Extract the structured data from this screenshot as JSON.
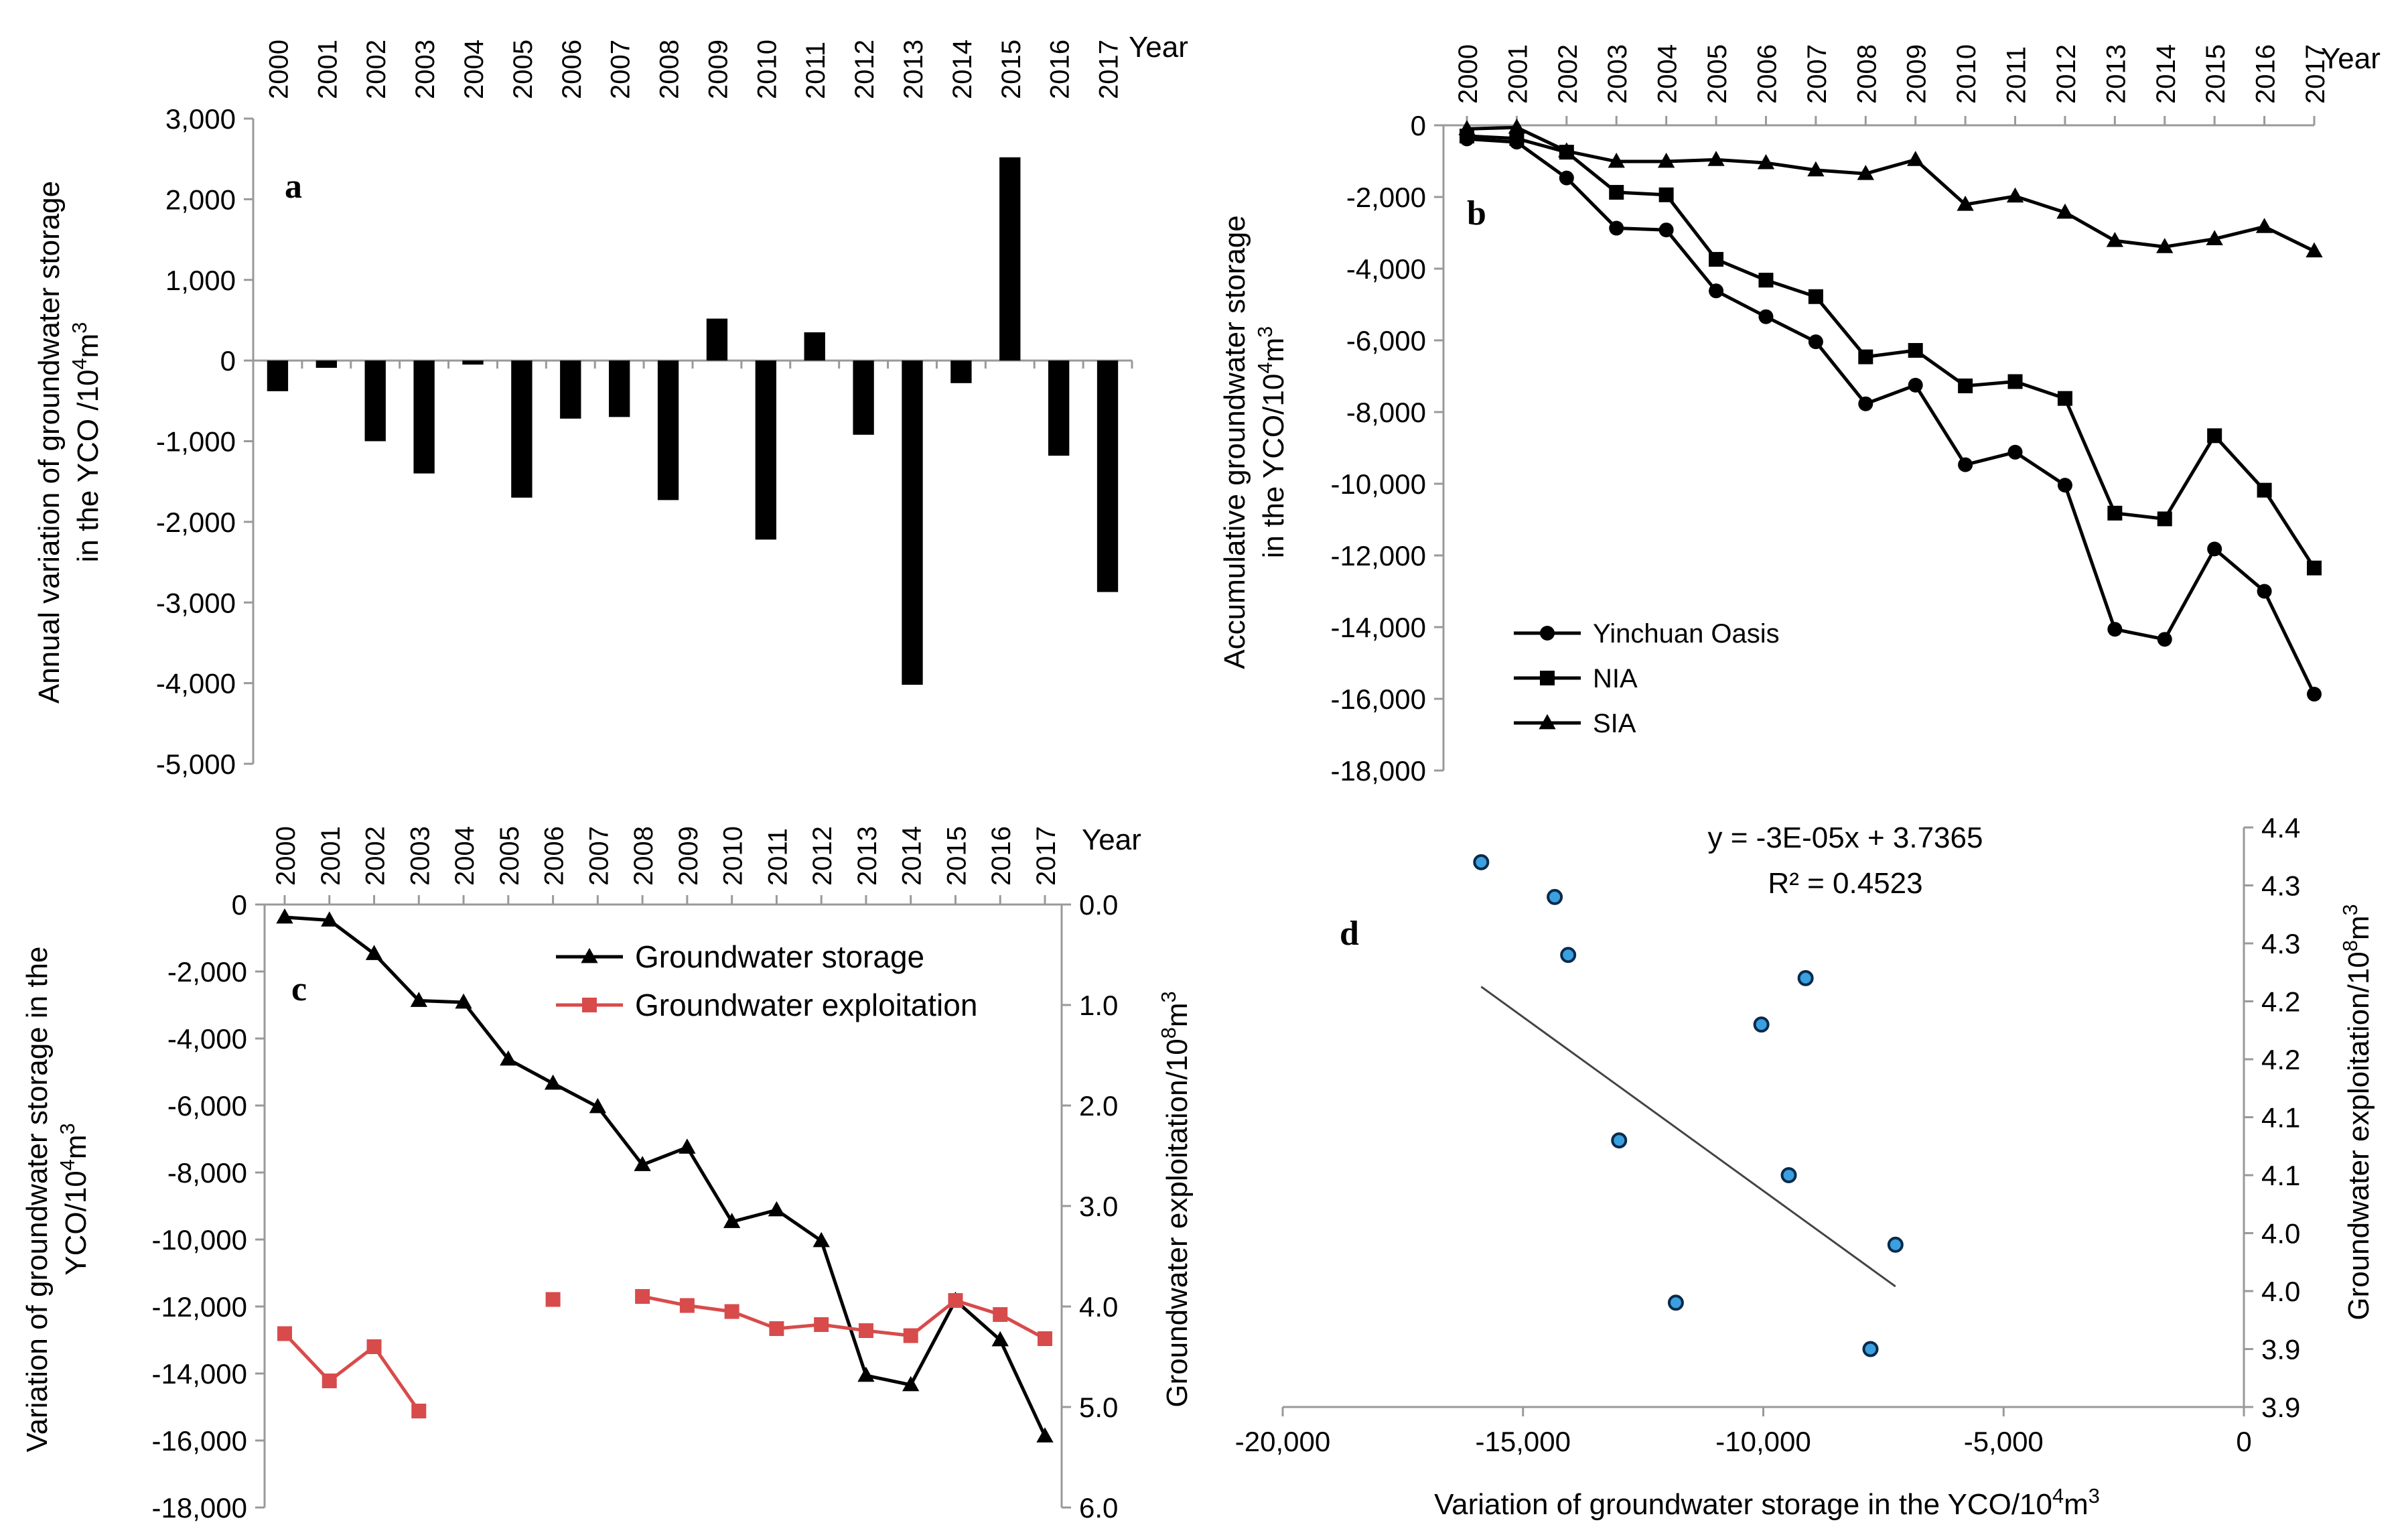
{
  "chart_data": [
    {
      "panel": "a",
      "type": "bar",
      "panel_letter": "a",
      "title": "",
      "xlabel": "Year",
      "ylabel_line1": "Annual variation of groundwater storage",
      "ylabel_line2": "in the YCO /10",
      "ylabel_sup": "4",
      "ylabel_tail": "m",
      "ylabel_sup2": "3",
      "categories": [
        "2000",
        "2001",
        "2002",
        "2003",
        "2004",
        "2005",
        "2006",
        "2007",
        "2008",
        "2009",
        "2010",
        "2011",
        "2012",
        "2013",
        "2014",
        "2015",
        "2016",
        "2017"
      ],
      "values": [
        -380,
        -90,
        -1000,
        -1400,
        -50,
        -1700,
        -720,
        -700,
        -1730,
        520,
        -2220,
        350,
        -920,
        -4020,
        -280,
        2520,
        -1180,
        -2870
      ],
      "ylim": [
        -5000,
        3000
      ],
      "yticks": [
        3000,
        2000,
        1000,
        0,
        -1000,
        -2000,
        -3000,
        -4000,
        -5000
      ],
      "ytick_labels": [
        "3,000",
        "2,000",
        "1,000",
        "0",
        "-1,000",
        "-2,000",
        "-3,000",
        "-4,000",
        "-5,000"
      ],
      "grid": false,
      "x_axis_position": "top"
    },
    {
      "panel": "b",
      "type": "line",
      "panel_letter": "b",
      "xlabel": "Year",
      "ylabel_line1": "Accumulative groundwater storage",
      "ylabel_line2": "in the YCO/10",
      "ylabel_sup": "4",
      "ylabel_tail": "m",
      "ylabel_sup2": "3",
      "categories": [
        "2000",
        "2001",
        "2002",
        "2003",
        "2004",
        "2005",
        "2006",
        "2007",
        "2008",
        "2009",
        "2010",
        "2011",
        "2012",
        "2013",
        "2014",
        "2015",
        "2016",
        "2017"
      ],
      "series": [
        {
          "name": "Yinchuan Oasis",
          "marker": "circle",
          "values": [
            -380,
            -470,
            -1470,
            -2870,
            -2920,
            -4620,
            -5340,
            -6040,
            -7770,
            -7250,
            -9470,
            -9120,
            -10040,
            -14060,
            -14340,
            -11820,
            -13000,
            -15870
          ]
        },
        {
          "name": "NIA",
          "marker": "square",
          "values": [
            -300,
            -370,
            -750,
            -1870,
            -1940,
            -3740,
            -4320,
            -4780,
            -6460,
            -6280,
            -7270,
            -7150,
            -7620,
            -10820,
            -10980,
            -8660,
            -10180,
            -12350
          ]
        },
        {
          "name": "SIA",
          "marker": "triangle",
          "values": [
            -100,
            -60,
            -720,
            -1010,
            -1010,
            -960,
            -1050,
            -1250,
            -1350,
            -960,
            -2210,
            -1980,
            -2430,
            -3220,
            -3390,
            -3170,
            -2830,
            -3510
          ]
        }
      ],
      "ylim": [
        -18000,
        0
      ],
      "yticks": [
        0,
        -2000,
        -4000,
        -6000,
        -8000,
        -10000,
        -12000,
        -14000,
        -16000,
        -18000
      ],
      "ytick_labels": [
        "0",
        "-2,000",
        "-4,000",
        "-6,000",
        "-8,000",
        "-10,000",
        "-12,000",
        "-14,000",
        "-16,000",
        "-18,000"
      ],
      "legend": "lower-left",
      "grid": false,
      "x_axis_position": "top"
    },
    {
      "panel": "c",
      "type": "line",
      "panel_letter": "c",
      "xlabel": "Year",
      "ylabel_line1": "Variation of groundwater storage in the",
      "ylabel_line2": "YCO/10",
      "ylabel_sup": "4",
      "ylabel_tail": "m",
      "ylabel_sup2": "3",
      "y2label": "Groundwater exploitation/10",
      "y2label_sup": "8",
      "y2label_tail": "m",
      "y2label_sup2": "3",
      "categories": [
        "2000",
        "2001",
        "2002",
        "2003",
        "2004",
        "2005",
        "2006",
        "2007",
        "2008",
        "2009",
        "2010",
        "2011",
        "2012",
        "2013",
        "2014",
        "2015",
        "2016",
        "2017"
      ],
      "series": [
        {
          "name": "Groundwater storage",
          "marker": "triangle",
          "color": "#000000",
          "axis": "left",
          "values": [
            -380,
            -470,
            -1470,
            -2870,
            -2920,
            -4620,
            -5340,
            -6040,
            -7770,
            -7250,
            -9470,
            -9120,
            -10040,
            -14060,
            -14340,
            -11820,
            -13000,
            -15870
          ]
        },
        {
          "name": "Groundwater exploitation",
          "marker": "square",
          "color": "#d84b4b",
          "axis": "right",
          "values": [
            4.27,
            4.74,
            4.4,
            5.04,
            null,
            null,
            3.93,
            null,
            3.9,
            3.99,
            4.05,
            4.22,
            4.18,
            4.24,
            4.29,
            3.94,
            4.08,
            4.32
          ]
        }
      ],
      "ylim": [
        -18000,
        0
      ],
      "yticks": [
        0,
        -2000,
        -4000,
        -6000,
        -8000,
        -10000,
        -12000,
        -14000,
        -16000,
        -18000
      ],
      "ytick_labels": [
        "0",
        "-2,000",
        "-4,000",
        "-6,000",
        "-8,000",
        "-10,000",
        "-12,000",
        "-14,000",
        "-16,000",
        "-18,000"
      ],
      "y2lim": [
        0,
        6
      ],
      "y2ticks": [
        0,
        1,
        2,
        3,
        4,
        5,
        6
      ],
      "y2tick_labels": [
        "0.0",
        "1.0",
        "2.0",
        "3.0",
        "4.0",
        "5.0",
        "6.0"
      ],
      "legend": "top-right",
      "grid": false,
      "x_axis_position": "top"
    },
    {
      "panel": "d",
      "type": "scatter",
      "panel_letter": "d",
      "xlabel": "Variation of groundwater storage in the YCO/10",
      "xlabel_sup": "4",
      "xlabel_tail": "m",
      "xlabel_sup2": "3",
      "y2label": "Groundwater exploitation/10",
      "y2label_sup": "8",
      "y2label_tail": "m",
      "y2label_sup2": "3",
      "points": [
        {
          "x": -15870,
          "y": 4.32
        },
        {
          "x": -14340,
          "y": 4.29
        },
        {
          "x": -14060,
          "y": 4.24
        },
        {
          "x": -13000,
          "y": 4.08
        },
        {
          "x": -11820,
          "y": 3.94
        },
        {
          "x": -10040,
          "y": 4.18
        },
        {
          "x": -9470,
          "y": 4.05
        },
        {
          "x": -9120,
          "y": 4.22
        },
        {
          "x": -7770,
          "y": 3.9
        },
        {
          "x": -7250,
          "y": 3.99
        }
      ],
      "trendline": {
        "slope": -3e-05,
        "intercept": 3.7365,
        "x_range": [
          -15870,
          -7250
        ]
      },
      "equation_line1": "y = -3E-05x + 3.7365",
      "equation_line2": "R² = 0.4523",
      "xlim": [
        -20000,
        0
      ],
      "xticks": [
        -20000,
        -15000,
        -10000,
        -5000,
        0
      ],
      "xtick_labels": [
        "-20,000",
        "-15,000",
        "-10,000",
        "-5,000",
        "0"
      ],
      "y2lim": [
        3.85,
        4.35
      ],
      "y2ticks": [
        3.85,
        3.9,
        3.95,
        4.0,
        4.05,
        4.1,
        4.15,
        4.2,
        4.25,
        4.3,
        4.35
      ],
      "y2tick_labels": [
        "3.9",
        "3.9",
        "4.0",
        "4.0",
        "4.1",
        "4.1",
        "4.2",
        "4.2",
        "4.3",
        "4.3",
        "4.4"
      ],
      "grid": false
    }
  ]
}
